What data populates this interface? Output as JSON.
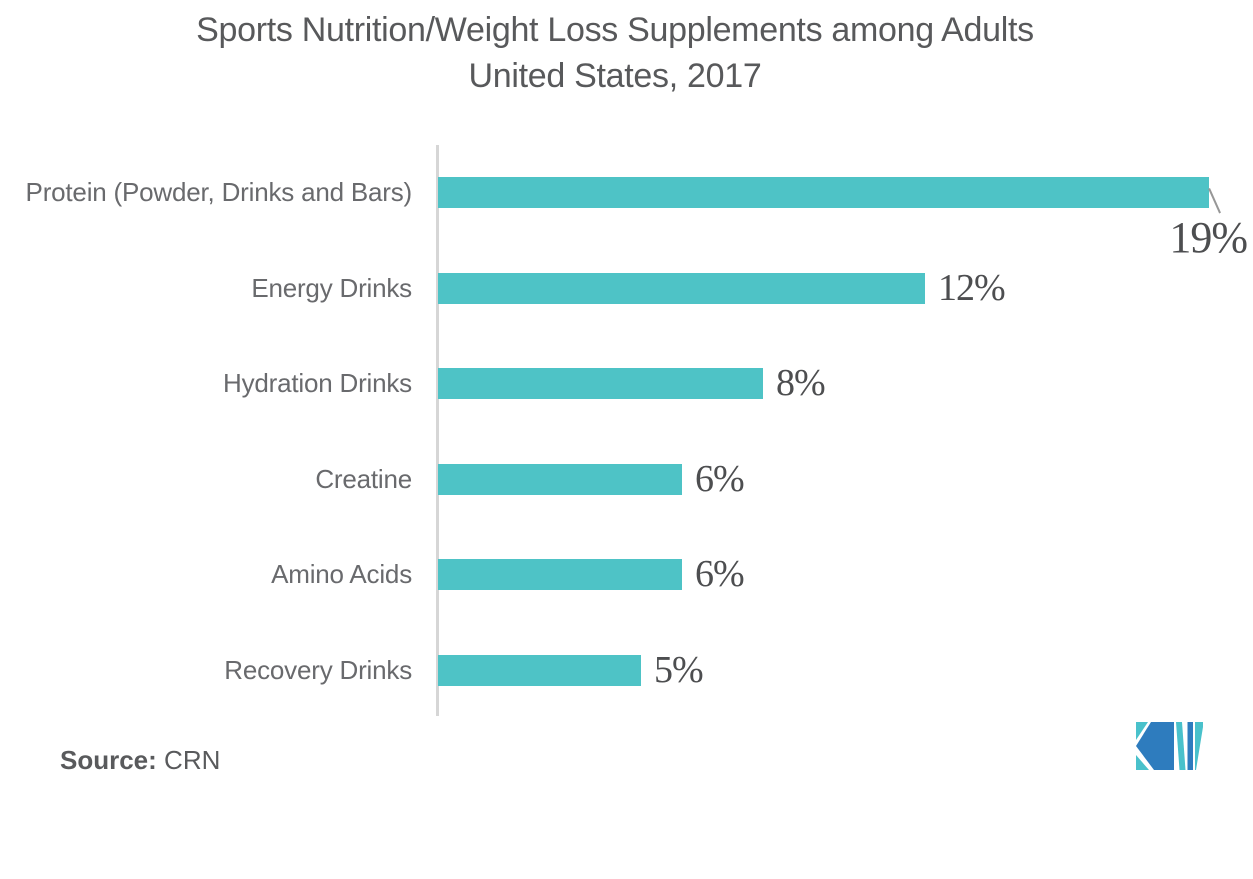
{
  "title": {
    "line1": "Sports Nutrition/Weight Loss Supplements among Adults",
    "line2": "United States, 2017"
  },
  "source": {
    "label": "Source:",
    "value": "CRN"
  },
  "logo": {
    "name": "mordor-intelligence-logo",
    "blue": "#2e7cbe",
    "teal": "#49c1cb"
  },
  "chart_data": {
    "type": "bar",
    "orientation": "horizontal",
    "title": "Sports Nutrition/Weight Loss Supplements among Adults — United States, 2017",
    "categories": [
      "Protein (Powder, Drinks and Bars)",
      "Energy Drinks",
      "Hydration Drinks",
      "Creatine",
      "Amino Acids",
      "Recovery Drinks"
    ],
    "values": [
      19,
      12,
      8,
      6,
      6,
      5
    ],
    "value_labels": [
      "19%",
      "12%",
      "8%",
      "6%",
      "6%",
      "5%"
    ],
    "unit": "percent of adults",
    "xlabel": "",
    "ylabel": "",
    "xlim": [
      0,
      20
    ],
    "grid": false,
    "legend": false,
    "bar_color": "#4ec3c6",
    "axis_color": "#d6d6d6",
    "leader_line_color": "#979797",
    "annotations": {
      "first_label_below_with_leader": true
    }
  }
}
